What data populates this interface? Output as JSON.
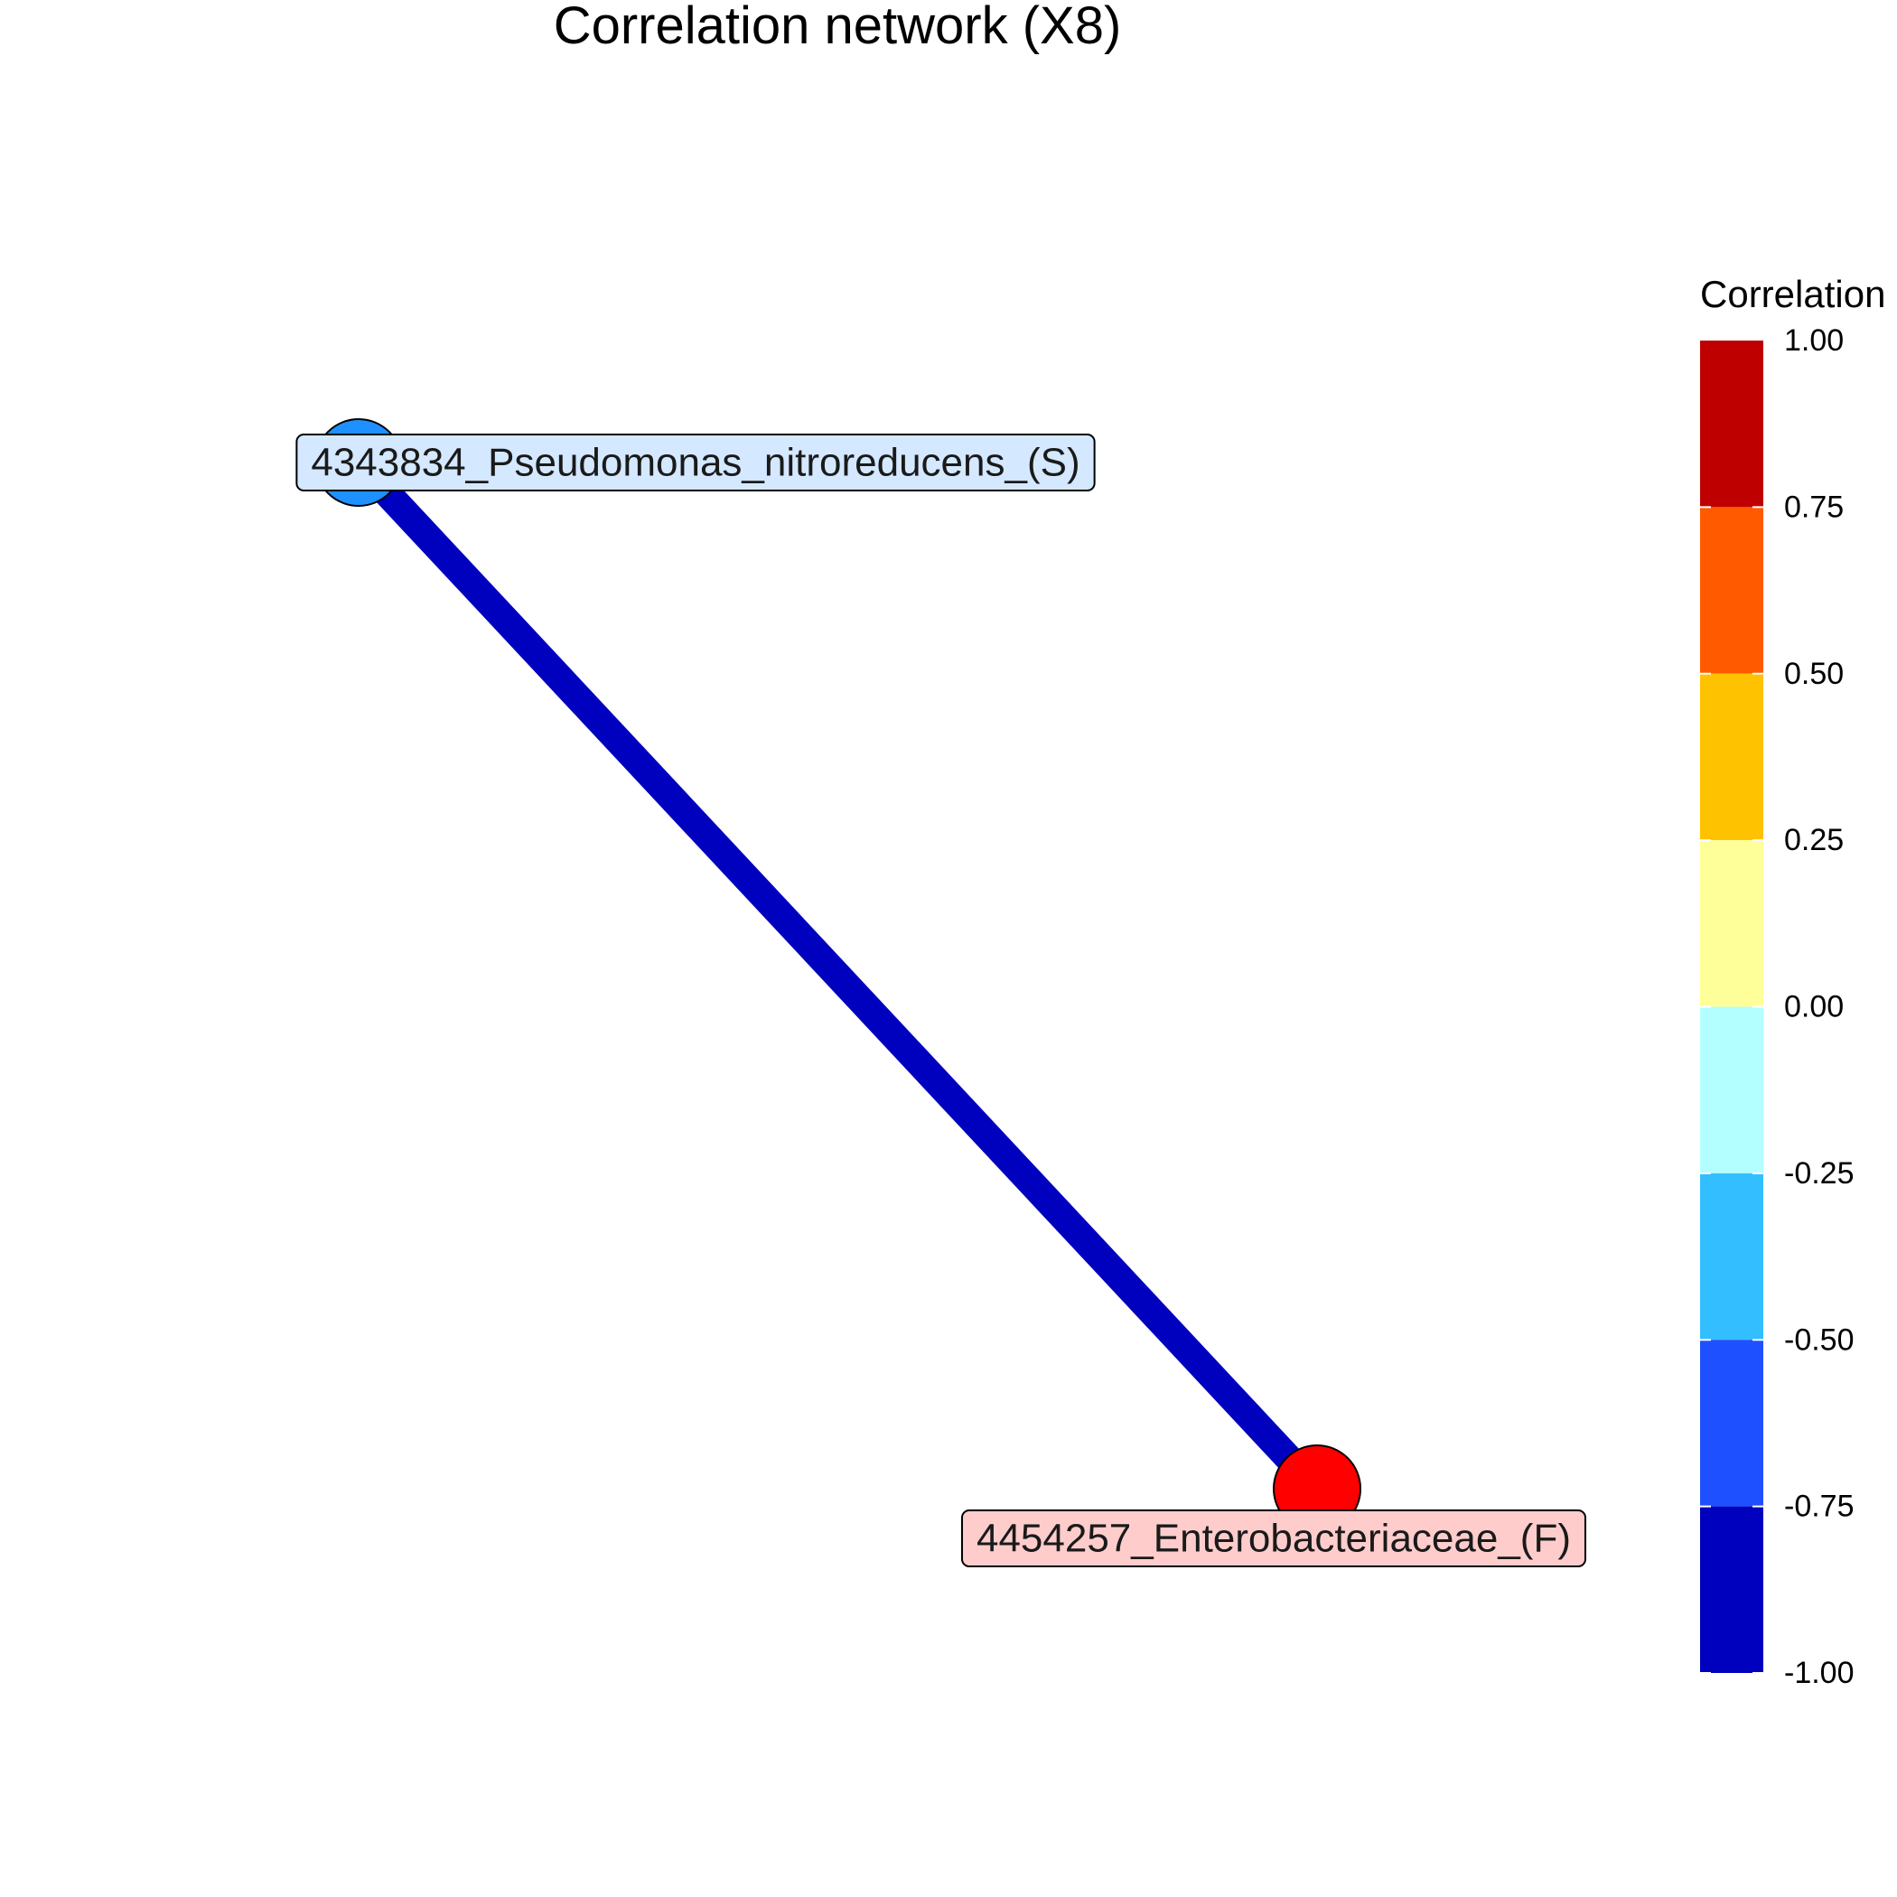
{
  "title": "Correlation network (X8)",
  "nodes": [
    {
      "id": "n1",
      "label": "4343834_Pseudomonas_nitroreducens_(S)",
      "fill": "#1E90FF",
      "label_bg": "#D4E8FF"
    },
    {
      "id": "n2",
      "label": "4454257_Enterobacteriaceae_(F)",
      "fill": "#FF0000",
      "label_bg": "#FFCCCC"
    }
  ],
  "edges": [
    {
      "source": "n1",
      "target": "n2",
      "correlation": -1.0,
      "color": "#0000BF"
    }
  ],
  "legend": {
    "title": "Correlation",
    "bins": [
      {
        "from": 0.75,
        "to": 1.0,
        "color": "#BF0000"
      },
      {
        "from": 0.5,
        "to": 0.75,
        "color": "#FF5A00"
      },
      {
        "from": 0.25,
        "to": 0.5,
        "color": "#FFC200"
      },
      {
        "from": 0.0,
        "to": 0.25,
        "color": "#FFFF99"
      },
      {
        "from": -0.25,
        "to": 0.0,
        "color": "#B3FFFF"
      },
      {
        "from": -0.5,
        "to": -0.25,
        "color": "#33BFFF"
      },
      {
        "from": -0.75,
        "to": -0.5,
        "color": "#1F50FF"
      },
      {
        "from": -1.0,
        "to": -0.75,
        "color": "#0000BF"
      }
    ],
    "ticks": [
      "1.00",
      "0.75",
      "0.50",
      "0.25",
      "0.00",
      "-0.25",
      "-0.50",
      "-0.75",
      "-1.00"
    ]
  }
}
